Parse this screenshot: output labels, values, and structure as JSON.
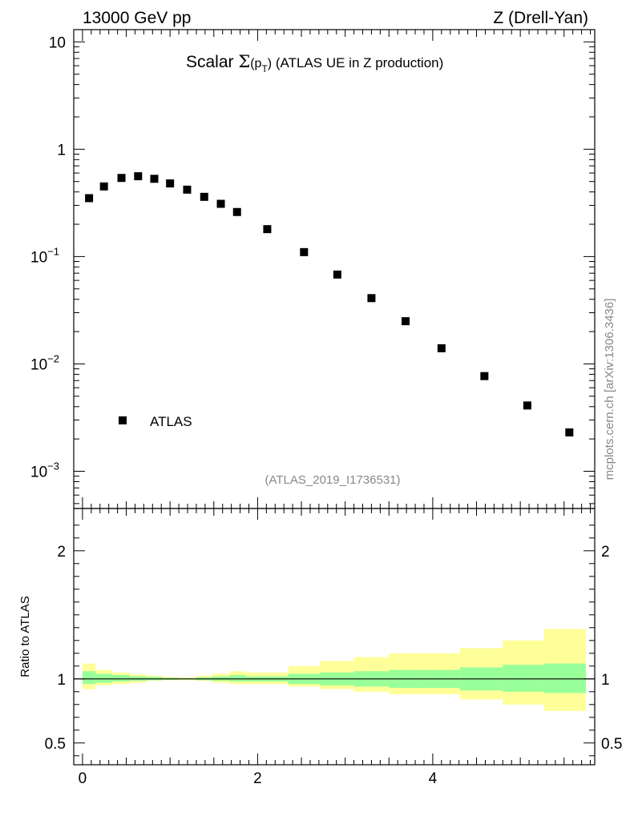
{
  "header": {
    "left": "13000 GeV pp",
    "right": "Z (Drell-Yan)"
  },
  "plot_title": {
    "prefix": "Scalar ",
    "sigma": "Σ",
    "open": "(p",
    "sub": "T",
    "close": ")",
    "rest": " (ATLAS UE in Z production)"
  },
  "side_label": "mcplots.cern.ch [arXiv:1306.3436]",
  "analysis_label": "(ATLAS_2019_I1736531)",
  "legend": {
    "label": "ATLAS"
  },
  "colors": {
    "band_outer": "#ffff99",
    "band_inner": "#99ff99",
    "marker": "#000000"
  },
  "chart_data": [
    {
      "type": "scatter",
      "panel": "main",
      "yscale": "log",
      "xlim": [
        -0.1,
        5.85
      ],
      "ylim": [
        0.00045,
        13
      ],
      "y_tick_labels": [
        {
          "value": 10,
          "mant": "10",
          "exp": ""
        },
        {
          "value": 1,
          "mant": "1",
          "exp": ""
        },
        {
          "value": 0.1,
          "mant": "10",
          "exp": "−1"
        },
        {
          "value": 0.01,
          "mant": "10",
          "exp": "−2"
        },
        {
          "value": 0.001,
          "mant": "10",
          "exp": "−3"
        }
      ],
      "series": [
        {
          "name": "ATLAS",
          "x": [
            0.075,
            0.245,
            0.445,
            0.635,
            0.82,
            1.0,
            1.195,
            1.39,
            1.58,
            1.765,
            2.11,
            2.53,
            2.91,
            3.3,
            3.69,
            4.1,
            4.59,
            5.08,
            5.56
          ],
          "y": [
            0.35,
            0.45,
            0.54,
            0.56,
            0.53,
            0.48,
            0.42,
            0.36,
            0.31,
            0.26,
            0.18,
            0.11,
            0.068,
            0.041,
            0.025,
            0.014,
            0.0077,
            0.0041,
            0.0023
          ]
        }
      ]
    },
    {
      "type": "area",
      "panel": "ratio",
      "ylabel": "Ratio to ATLAS",
      "xlim": [
        -0.1,
        5.85
      ],
      "ylim": [
        0.33,
        2.33
      ],
      "x_tick_labels": [
        0,
        2,
        4
      ],
      "y_tick_labels": [
        0.5,
        1,
        2
      ],
      "bins": [
        {
          "lo": 0.0,
          "hi": 0.15,
          "inner": [
            0.96,
            1.06
          ],
          "outer": [
            0.92,
            1.12
          ]
        },
        {
          "lo": 0.15,
          "hi": 0.34,
          "inner": [
            0.97,
            1.04
          ],
          "outer": [
            0.95,
            1.07
          ]
        },
        {
          "lo": 0.34,
          "hi": 0.54,
          "inner": [
            0.98,
            1.03
          ],
          "outer": [
            0.96,
            1.05
          ]
        },
        {
          "lo": 0.54,
          "hi": 0.73,
          "inner": [
            0.985,
            1.02
          ],
          "outer": [
            0.97,
            1.035
          ]
        },
        {
          "lo": 0.73,
          "hi": 0.91,
          "inner": [
            0.99,
            1.015
          ],
          "outer": [
            0.985,
            1.025
          ]
        },
        {
          "lo": 0.91,
          "hi": 1.09,
          "inner": [
            0.993,
            1.008
          ],
          "outer": [
            0.99,
            1.015
          ]
        },
        {
          "lo": 1.09,
          "hi": 1.3,
          "inner": [
            0.995,
            1.006
          ],
          "outer": [
            0.99,
            1.012
          ]
        },
        {
          "lo": 1.3,
          "hi": 1.48,
          "inner": [
            0.99,
            1.012
          ],
          "outer": [
            0.985,
            1.025
          ]
        },
        {
          "lo": 1.48,
          "hi": 1.68,
          "inner": [
            0.985,
            1.02
          ],
          "outer": [
            0.97,
            1.04
          ]
        },
        {
          "lo": 1.68,
          "hi": 1.86,
          "inner": [
            0.98,
            1.03
          ],
          "outer": [
            0.96,
            1.06
          ]
        },
        {
          "lo": 1.86,
          "hi": 2.35,
          "inner": [
            0.98,
            1.02
          ],
          "outer": [
            0.96,
            1.05
          ]
        },
        {
          "lo": 2.35,
          "hi": 2.71,
          "inner": [
            0.96,
            1.04
          ],
          "outer": [
            0.94,
            1.1
          ]
        },
        {
          "lo": 2.71,
          "hi": 3.1,
          "inner": [
            0.95,
            1.05
          ],
          "outer": [
            0.92,
            1.14
          ]
        },
        {
          "lo": 3.1,
          "hi": 3.5,
          "inner": [
            0.94,
            1.06
          ],
          "outer": [
            0.9,
            1.17
          ]
        },
        {
          "lo": 3.5,
          "hi": 3.88,
          "inner": [
            0.93,
            1.07
          ],
          "outer": [
            0.88,
            1.2
          ]
        },
        {
          "lo": 3.88,
          "hi": 4.31,
          "inner": [
            0.93,
            1.07
          ],
          "outer": [
            0.88,
            1.2
          ]
        },
        {
          "lo": 4.31,
          "hi": 4.8,
          "inner": [
            0.91,
            1.09
          ],
          "outer": [
            0.84,
            1.24
          ]
        },
        {
          "lo": 4.8,
          "hi": 5.27,
          "inner": [
            0.9,
            1.11
          ],
          "outer": [
            0.8,
            1.3
          ]
        },
        {
          "lo": 5.27,
          "hi": 5.75,
          "inner": [
            0.89,
            1.12
          ],
          "outer": [
            0.75,
            1.39
          ]
        }
      ],
      "reference_line": 1.0
    }
  ]
}
